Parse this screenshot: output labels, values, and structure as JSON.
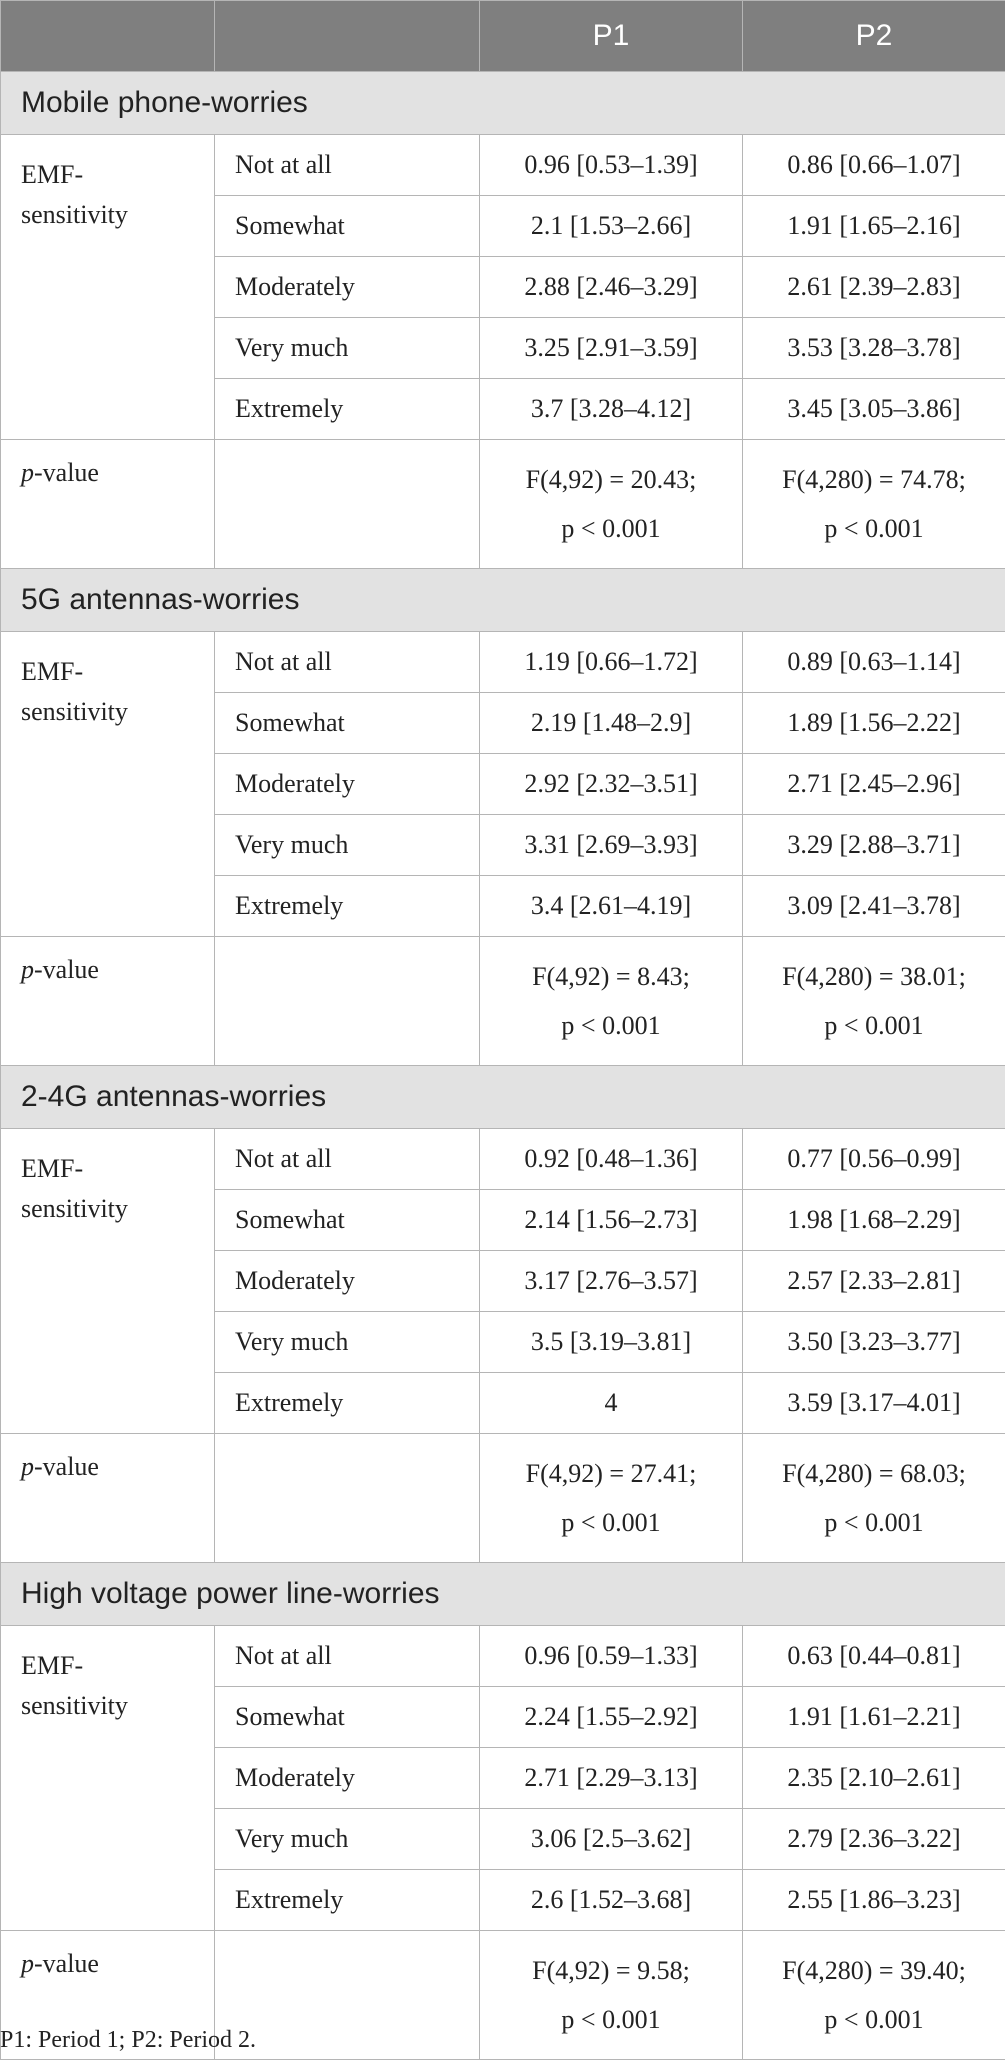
{
  "header": {
    "col1": "",
    "col2": "",
    "col3": "P1",
    "col4": "P2"
  },
  "sections": [
    {
      "title": "Mobile phone-worries",
      "row_label": "EMF-sensitivity",
      "row_label_line1": "EMF-",
      "row_label_line2": "sensitivity",
      "levels": [
        {
          "label": "Not at all",
          "p1": "0.96 [0.53–1.39]",
          "p2": "0.86 [0.66–1.07]"
        },
        {
          "label": "Somewhat",
          "p1": "2.1 [1.53–2.66]",
          "p2": "1.91 [1.65–2.16]"
        },
        {
          "label": "Moderately",
          "p1": "2.88 [2.46–3.29]",
          "p2": "2.61 [2.39–2.83]"
        },
        {
          "label": "Very much",
          "p1": "3.25 [2.91–3.59]",
          "p2": "3.53 [3.28–3.78]"
        },
        {
          "label": "Extremely",
          "p1": "3.7 [3.28–4.12]",
          "p2": "3.45 [3.05–3.86]"
        }
      ],
      "pvalue": {
        "label_italic": "p",
        "label_rest": "-value",
        "p1_line1": "F(4,92) = 20.43;",
        "p1_line2": "p < 0.001",
        "p2_line1": "F(4,280) = 74.78;",
        "p2_line2": "p < 0.001"
      }
    },
    {
      "title": "5G antennas-worries",
      "row_label": "EMF-sensitivity",
      "row_label_line1": "EMF-",
      "row_label_line2": "sensitivity",
      "levels": [
        {
          "label": "Not at all",
          "p1": "1.19 [0.66–1.72]",
          "p2": "0.89 [0.63–1.14]"
        },
        {
          "label": "Somewhat",
          "p1": "2.19 [1.48–2.9]",
          "p2": "1.89 [1.56–2.22]"
        },
        {
          "label": "Moderately",
          "p1": "2.92 [2.32–3.51]",
          "p2": "2.71 [2.45–2.96]"
        },
        {
          "label": "Very much",
          "p1": "3.31 [2.69–3.93]",
          "p2": "3.29 [2.88–3.71]"
        },
        {
          "label": "Extremely",
          "p1": "3.4 [2.61–4.19]",
          "p2": "3.09 [2.41–3.78]"
        }
      ],
      "pvalue": {
        "label_italic": "p",
        "label_rest": "-value",
        "p1_line1": "F(4,92) = 8.43;",
        "p1_line2": "p < 0.001",
        "p2_line1": "F(4,280) = 38.01;",
        "p2_line2": "p < 0.001"
      }
    },
    {
      "title": "2-4G antennas-worries",
      "row_label": "EMF-sensitivity",
      "row_label_line1": "EMF-",
      "row_label_line2": "sensitivity",
      "levels": [
        {
          "label": "Not at all",
          "p1": "0.92 [0.48–1.36]",
          "p2": "0.77 [0.56–0.99]"
        },
        {
          "label": "Somewhat",
          "p1": "2.14 [1.56–2.73]",
          "p2": "1.98 [1.68–2.29]"
        },
        {
          "label": "Moderately",
          "p1": "3.17 [2.76–3.57]",
          "p2": "2.57 [2.33–2.81]"
        },
        {
          "label": "Very much",
          "p1": "3.5 [3.19–3.81]",
          "p2": "3.50 [3.23–3.77]"
        },
        {
          "label": "Extremely",
          "p1": "4",
          "p2": "3.59 [3.17–4.01]"
        }
      ],
      "pvalue": {
        "label_italic": "p",
        "label_rest": "-value",
        "p1_line1": "F(4,92) = 27.41;",
        "p1_line2": "p < 0.001",
        "p2_line1": "F(4,280) = 68.03;",
        "p2_line2": "p < 0.001"
      }
    },
    {
      "title": "High voltage power line-worries",
      "row_label": "EMF-sensitivity",
      "row_label_line1": "EMF-",
      "row_label_line2": "sensitivity",
      "levels": [
        {
          "label": "Not at all",
          "p1": "0.96 [0.59–1.33]",
          "p2": "0.63 [0.44–0.81]"
        },
        {
          "label": "Somewhat",
          "p1": "2.24 [1.55–2.92]",
          "p2": "1.91 [1.61–2.21]"
        },
        {
          "label": "Moderately",
          "p1": "2.71 [2.29–3.13]",
          "p2": "2.35 [2.10–2.61]"
        },
        {
          "label": "Very much",
          "p1": "3.06 [2.5–3.62]",
          "p2": "2.79 [2.36–3.22]"
        },
        {
          "label": "Extremely",
          "p1": "2.6 [1.52–3.68]",
          "p2": "2.55 [1.86–3.23]"
        }
      ],
      "pvalue": {
        "label_italic": "p",
        "label_rest": "-value",
        "p1_line1": "F(4,92) = 9.58;",
        "p1_line2": "p < 0.001",
        "p2_line1": "F(4,280) = 39.40;",
        "p2_line2": "p < 0.001"
      }
    }
  ],
  "footnote": "P1: Period 1; P2: Period 2."
}
